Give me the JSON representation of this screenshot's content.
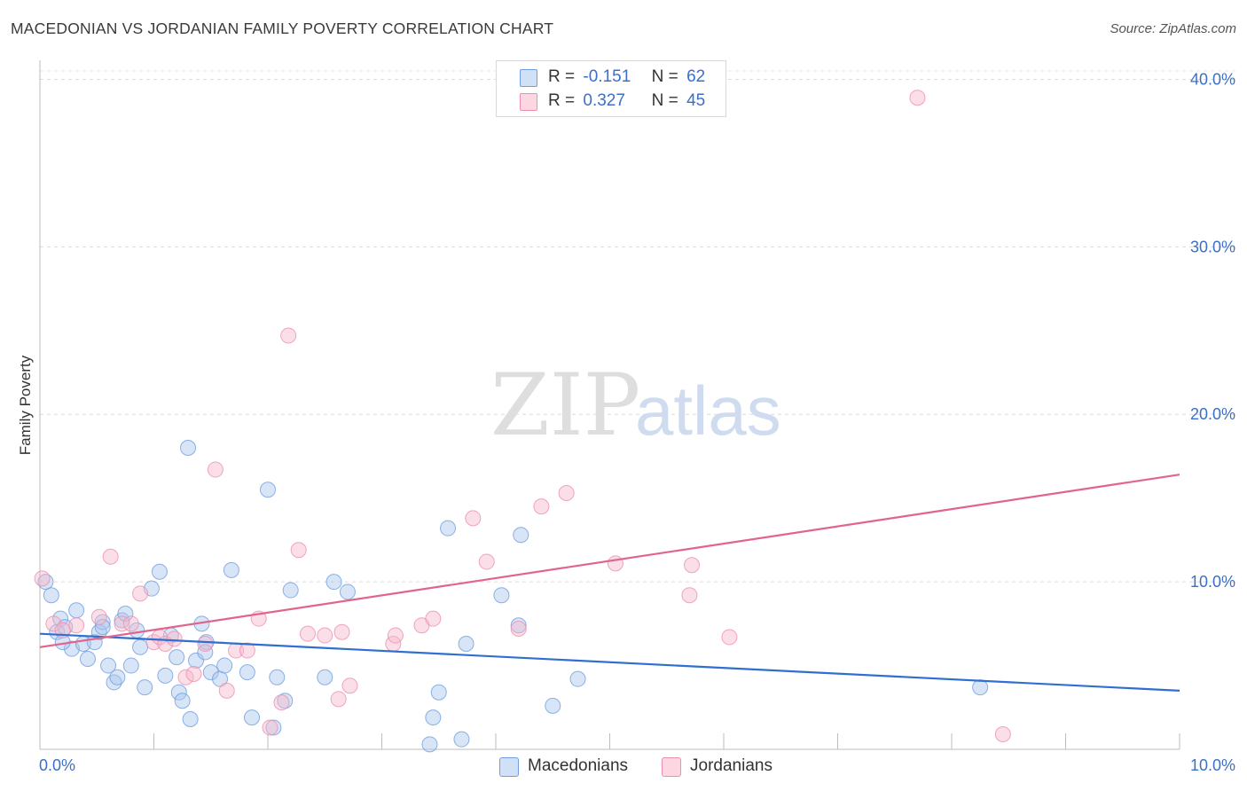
{
  "title": "MACEDONIAN VS JORDANIAN FAMILY POVERTY CORRELATION CHART",
  "source": "Source: ZipAtlas.com",
  "watermark": {
    "zip": "ZIP",
    "atlas": "atlas"
  },
  "legend": [
    {
      "r_label": "R =",
      "r_value": "-0.151",
      "n_label": "N =",
      "n_value": "62",
      "color": "#a9c6ee"
    },
    {
      "r_label": "R =",
      "r_value": "0.327",
      "n_label": "N =",
      "n_value": "45",
      "color": "#f7b9cc"
    }
  ],
  "bottom_legend": [
    {
      "label": "Macedonians",
      "color": "#a9c6ee"
    },
    {
      "label": "Jordanians",
      "color": "#f7b9cc"
    }
  ],
  "chart_data": {
    "type": "scatter",
    "title": "MACEDONIAN VS JORDANIAN FAMILY POVERTY CORRELATION CHART",
    "xlabel": "",
    "ylabel": "Family Poverty",
    "xlim": [
      0,
      10
    ],
    "ylim": [
      0,
      40.5
    ],
    "y_ticks": [
      10,
      20,
      30,
      40
    ],
    "y_tick_labels": [
      "10.0%",
      "20.0%",
      "30.0%",
      "40.0%"
    ],
    "x_tick_labels": [
      "0.0%",
      "10.0%"
    ],
    "grid": true,
    "series": [
      {
        "name": "Macedonians",
        "color": "#6f9fe0",
        "fill": "#a9c6ee",
        "trend_color": "#2f6fcf",
        "trend": {
          "x": [
            0,
            10
          ],
          "y": [
            6.9,
            3.5
          ]
        },
        "points": [
          [
            0.05,
            10.0
          ],
          [
            0.1,
            9.2
          ],
          [
            0.15,
            7.0
          ],
          [
            0.18,
            7.8
          ],
          [
            0.22,
            7.3
          ],
          [
            0.28,
            6.0
          ],
          [
            0.32,
            8.3
          ],
          [
            0.38,
            6.3
          ],
          [
            0.42,
            5.4
          ],
          [
            0.48,
            6.4
          ],
          [
            0.52,
            7.0
          ],
          [
            0.55,
            7.6
          ],
          [
            0.6,
            5.0
          ],
          [
            0.65,
            4.0
          ],
          [
            0.68,
            4.3
          ],
          [
            0.72,
            7.7
          ],
          [
            0.75,
            8.1
          ],
          [
            0.8,
            5.0
          ],
          [
            0.85,
            7.1
          ],
          [
            0.88,
            6.1
          ],
          [
            0.92,
            3.7
          ],
          [
            0.98,
            9.6
          ],
          [
            1.05,
            10.6
          ],
          [
            1.1,
            4.4
          ],
          [
            1.15,
            6.8
          ],
          [
            1.2,
            5.5
          ],
          [
            1.22,
            3.4
          ],
          [
            1.25,
            2.9
          ],
          [
            1.3,
            18.0
          ],
          [
            1.32,
            1.8
          ],
          [
            1.37,
            5.3
          ],
          [
            1.42,
            7.5
          ],
          [
            1.46,
            6.4
          ],
          [
            1.5,
            4.6
          ],
          [
            1.58,
            4.2
          ],
          [
            1.62,
            5.0
          ],
          [
            1.68,
            10.7
          ],
          [
            1.82,
            4.6
          ],
          [
            1.86,
            1.9
          ],
          [
            2.0,
            15.5
          ],
          [
            2.05,
            1.3
          ],
          [
            2.08,
            4.3
          ],
          [
            2.15,
            2.9
          ],
          [
            2.2,
            9.5
          ],
          [
            2.5,
            4.3
          ],
          [
            2.58,
            10.0
          ],
          [
            2.7,
            9.4
          ],
          [
            3.42,
            0.3
          ],
          [
            3.45,
            1.9
          ],
          [
            3.5,
            3.4
          ],
          [
            3.58,
            13.2
          ],
          [
            3.7,
            0.6
          ],
          [
            3.74,
            6.3
          ],
          [
            4.05,
            9.2
          ],
          [
            4.2,
            7.4
          ],
          [
            4.22,
            12.8
          ],
          [
            4.5,
            2.6
          ],
          [
            4.72,
            4.2
          ],
          [
            8.25,
            3.7
          ],
          [
            0.2,
            6.4
          ],
          [
            0.55,
            7.3
          ],
          [
            1.45,
            5.8
          ]
        ]
      },
      {
        "name": "Jordanians",
        "color": "#ef8fac",
        "fill": "#f7b9cc",
        "trend_color": "#e2648c",
        "trend": {
          "x": [
            0,
            10
          ],
          "y": [
            6.1,
            16.4
          ]
        },
        "points": [
          [
            0.02,
            10.2
          ],
          [
            0.12,
            7.5
          ],
          [
            0.32,
            7.4
          ],
          [
            0.52,
            7.9
          ],
          [
            0.62,
            11.5
          ],
          [
            0.72,
            7.5
          ],
          [
            0.8,
            7.5
          ],
          [
            0.88,
            9.3
          ],
          [
            1.0,
            6.4
          ],
          [
            1.05,
            6.7
          ],
          [
            1.1,
            6.3
          ],
          [
            1.18,
            6.6
          ],
          [
            1.28,
            4.3
          ],
          [
            1.35,
            4.5
          ],
          [
            1.45,
            6.3
          ],
          [
            1.54,
            16.7
          ],
          [
            1.64,
            3.5
          ],
          [
            1.72,
            5.9
          ],
          [
            1.82,
            5.9
          ],
          [
            1.92,
            7.8
          ],
          [
            2.02,
            1.3
          ],
          [
            2.12,
            2.8
          ],
          [
            2.18,
            24.7
          ],
          [
            2.27,
            11.9
          ],
          [
            2.35,
            6.9
          ],
          [
            2.5,
            6.8
          ],
          [
            2.62,
            3.0
          ],
          [
            2.65,
            7.0
          ],
          [
            2.72,
            3.8
          ],
          [
            3.1,
            6.3
          ],
          [
            3.12,
            6.8
          ],
          [
            3.35,
            7.4
          ],
          [
            3.45,
            7.8
          ],
          [
            3.8,
            13.8
          ],
          [
            3.92,
            11.2
          ],
          [
            4.2,
            7.2
          ],
          [
            4.4,
            14.5
          ],
          [
            4.62,
            15.3
          ],
          [
            5.05,
            11.1
          ],
          [
            5.7,
            9.2
          ],
          [
            5.72,
            11.0
          ],
          [
            6.05,
            6.7
          ],
          [
            7.7,
            38.9
          ],
          [
            8.45,
            0.9
          ],
          [
            0.2,
            7.1
          ]
        ]
      }
    ]
  }
}
